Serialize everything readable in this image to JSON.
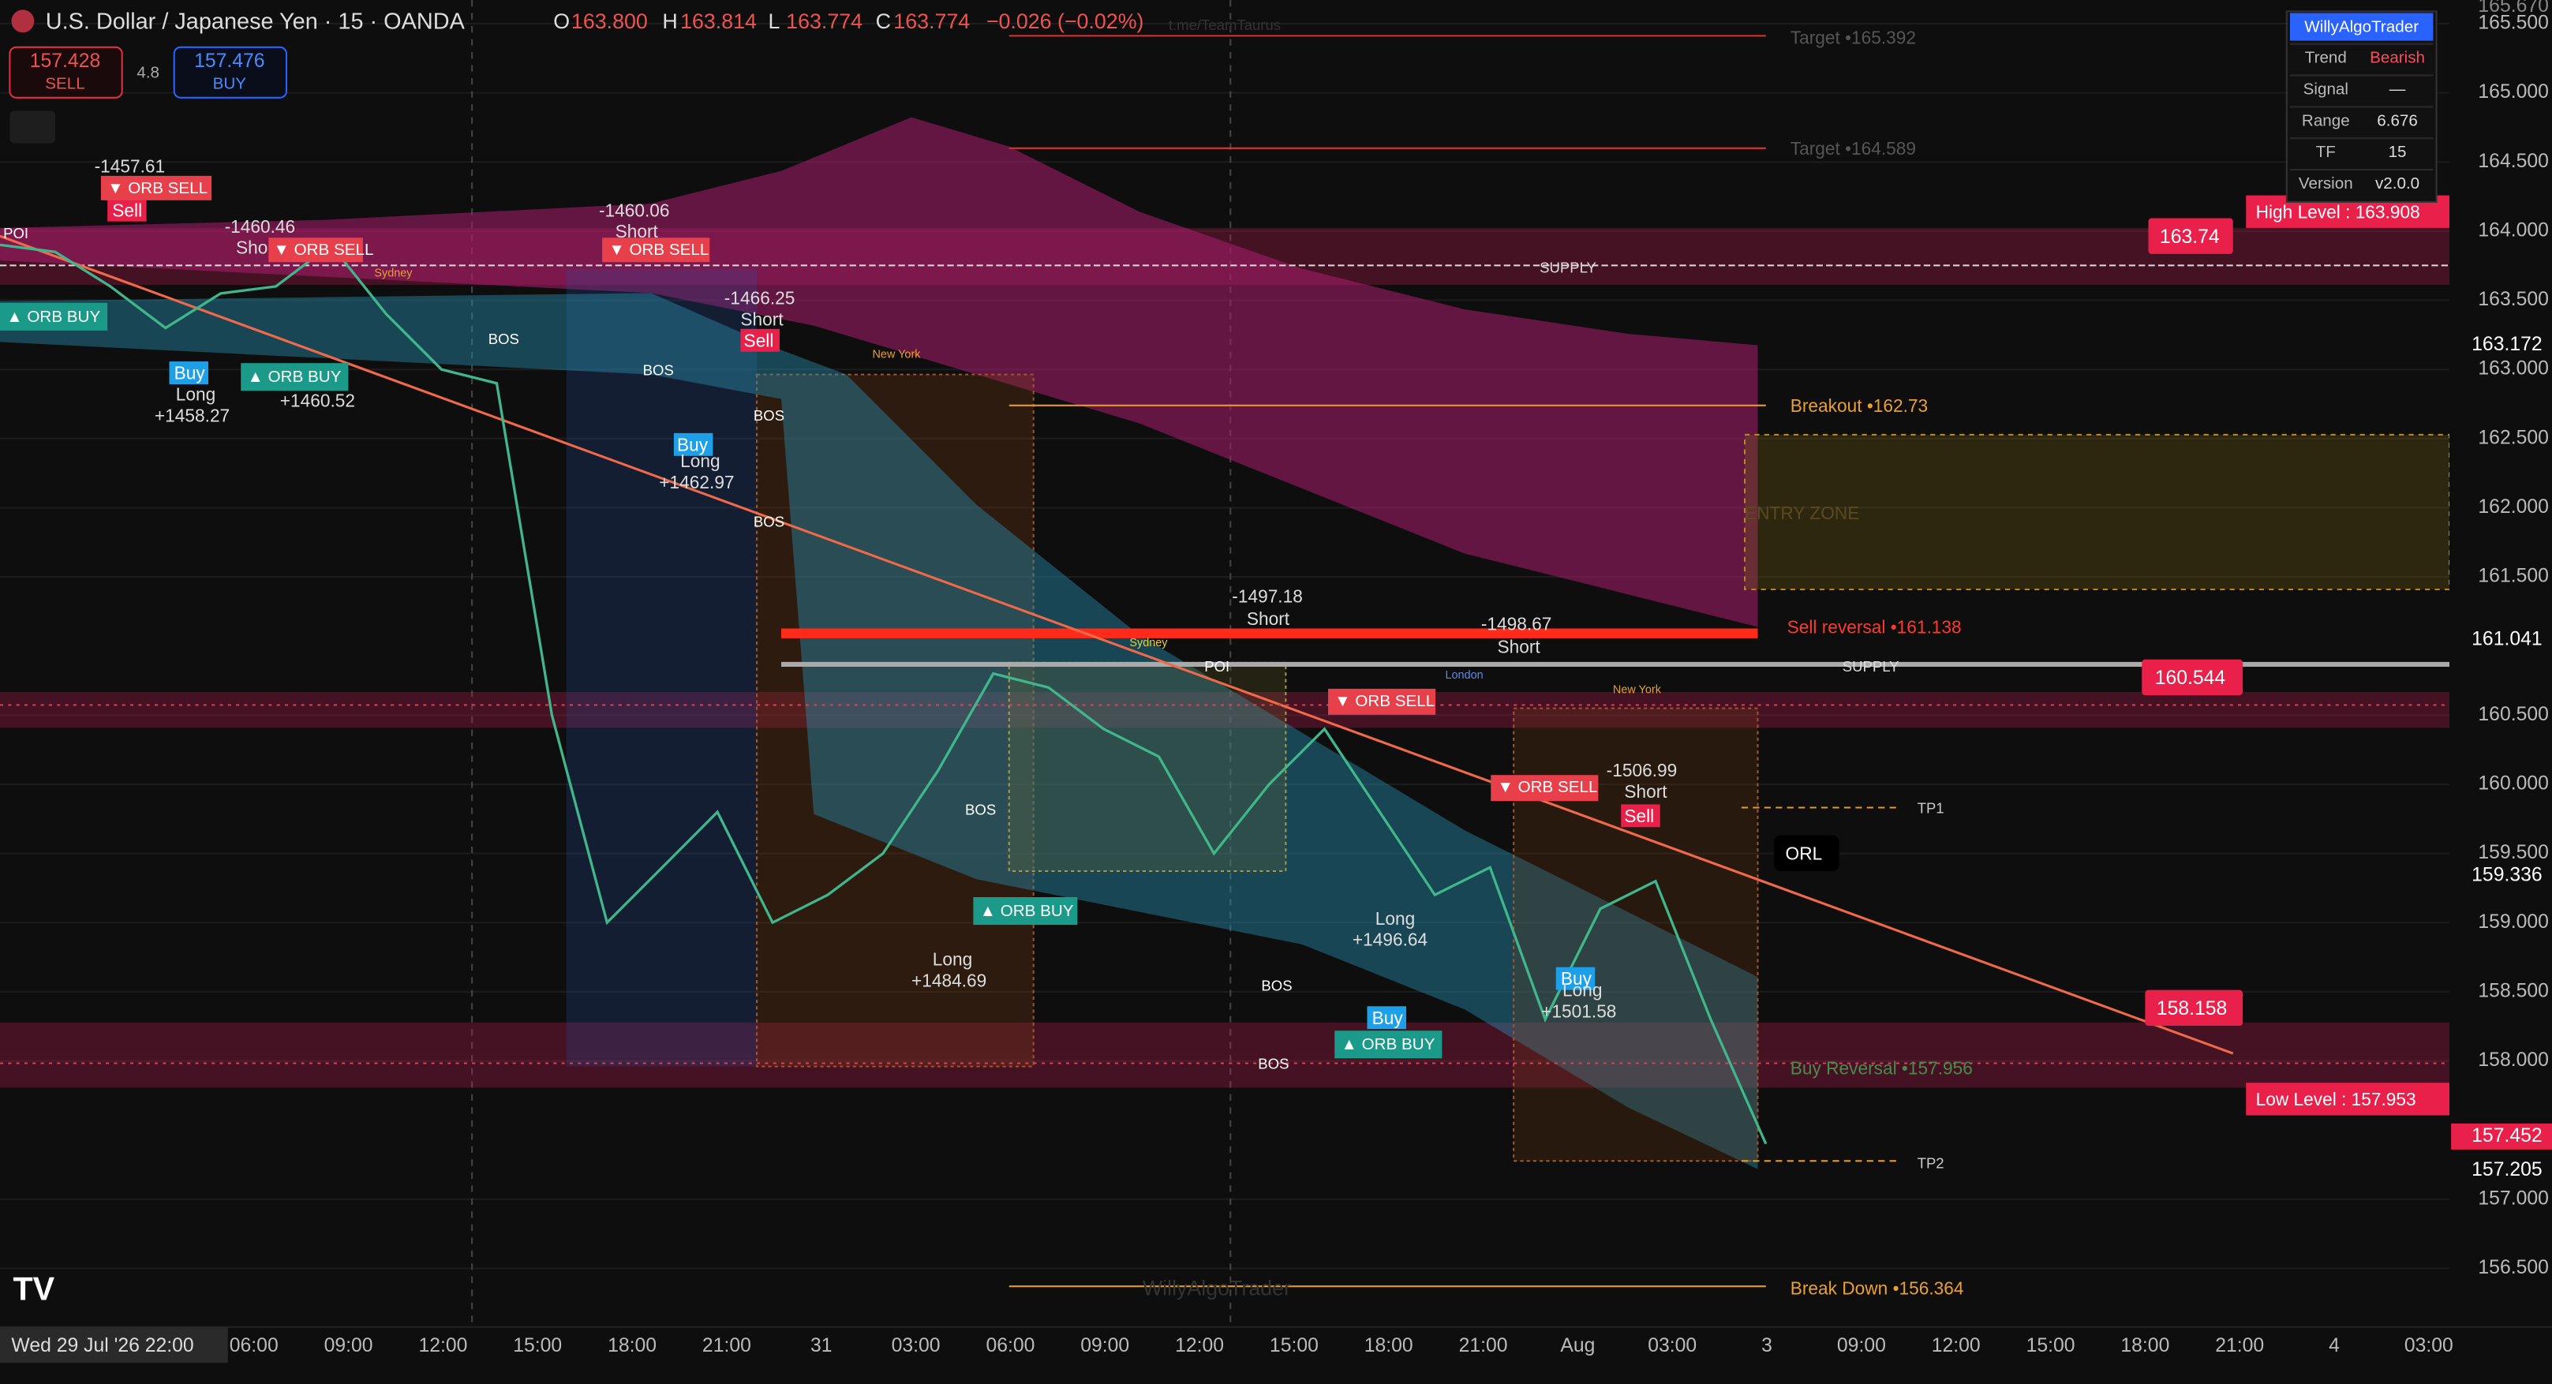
{
  "header": {
    "symbol": "U.S. Dollar / Japanese Yen · 15 · OANDA",
    "o_label": "O",
    "open": "163.800",
    "h_label": "H",
    "high": "163.814",
    "l_label": "L",
    "low": "163.774",
    "c_label": "C",
    "close": "163.774",
    "change": "−0.026 (−0.02%)",
    "watermark_link": "t.me/TeamTaurus",
    "sell_price": "157.428",
    "sell_label": "SELL",
    "spread": "4.8",
    "buy_price": "157.476",
    "buy_label": "BUY"
  },
  "price_axis": {
    "ylim": [
      156.076,
      165.671
    ],
    "ticks": [
      {
        "value": 156.5,
        "label": "156.500"
      },
      {
        "value": 157,
        "label": "157.000"
      },
      {
        "value": 158,
        "label": "158.000"
      },
      {
        "value": 158.5,
        "label": "158.500"
      },
      {
        "value": 159,
        "label": "159.000"
      },
      {
        "value": 159.5,
        "label": "159.500"
      },
      {
        "value": 160,
        "label": "160.000"
      },
      {
        "value": 160.5,
        "label": "160.500"
      },
      {
        "value": 161.5,
        "label": "161.500"
      },
      {
        "value": 162,
        "label": "162.000"
      },
      {
        "value": 162.5,
        "label": "162.500"
      },
      {
        "value": 163,
        "label": "163.000"
      },
      {
        "value": 163.5,
        "label": "163.500"
      },
      {
        "value": 164,
        "label": "164.000"
      },
      {
        "value": 164.5,
        "label": "164.500"
      },
      {
        "value": 165,
        "label": "165.000"
      },
      {
        "value": 165.5,
        "label": "165.500"
      }
    ],
    "top_label": "165.670",
    "badges": [
      "163.172",
      "161.041",
      "159.336",
      "157.452",
      "157.205"
    ]
  },
  "time_axis": {
    "cursor": "Wed 29 Jul '26  22:00",
    "labels": [
      "06:00",
      "09:00",
      "12:00",
      "15:00",
      "18:00",
      "21:00",
      "31",
      "03:00",
      "06:00",
      "09:00",
      "12:00",
      "15:00",
      "18:00",
      "21:00",
      "Aug",
      "03:00",
      "3",
      "09:00",
      "12:00",
      "15:00",
      "18:00",
      "21:00",
      "4",
      "03:00"
    ]
  },
  "price_series": {
    "values": [
      163.9,
      163.85,
      163.6,
      163.3,
      163.55,
      163.6,
      163.9,
      163.4,
      163.0,
      162.9,
      160.5,
      159.0,
      159.4,
      159.8,
      159.0,
      159.2,
      159.5,
      160.1,
      160.8,
      160.7,
      160.4,
      160.2,
      159.5,
      160.0,
      160.4,
      159.8,
      159.2,
      159.4,
      158.3,
      159.1,
      159.3,
      158.3,
      157.4
    ]
  },
  "info_panel": {
    "title": "WillyAlgoTrader",
    "rows": [
      [
        "Trend",
        "Bearish"
      ],
      [
        "Signal",
        "—"
      ],
      [
        "Range",
        "6.676"
      ],
      [
        "TF",
        "15"
      ],
      [
        "Version",
        "v2.0.0"
      ]
    ]
  },
  "levels": {
    "target1": "Target •165.392",
    "target2": "Target •164.589",
    "breakout": "Breakout •162.73",
    "entry": "ENTRY ZONE",
    "sell_reversal": "Sell reversal •161.138",
    "supply1": "SUPPLY",
    "supply2": "SUPPLY",
    "tp1": "TP1",
    "orl": "ORL",
    "buy_reversal": "Buy Reversal •157.956",
    "tp2": "TP2",
    "breakdown": "Break Down •156.364",
    "high": "High Level : 163.908",
    "low": "Low  Level : 157.953",
    "tag1": "163.74",
    "tag2": "160.544",
    "tag3": "158.158",
    "poi1": "POI",
    "poi2": "POI"
  },
  "signals": {
    "s1": "-1457.61",
    "s2": "-1460.46",
    "s3": "-1460.06",
    "s4": "-1466.25",
    "s5": "-1497.18",
    "s6": "-1498.67",
    "s7": "-1506.99",
    "short": "Short",
    "long": "Long",
    "sell": "Sell",
    "buy": "Buy",
    "l1": "+1458.27",
    "l2": "+1460.52",
    "l3": "+1462.97",
    "l4": "+1484.69",
    "l5": "+1496.64",
    "l6": "+1501.58",
    "orb_buy": "▲ ORB BUY",
    "orb_sell": "▼ ORB SELL",
    "bos": "BOS",
    "sydney": "Sydney",
    "new_york": "New York",
    "london": "London",
    "watermark": "WillyAlgoTrader"
  }
}
